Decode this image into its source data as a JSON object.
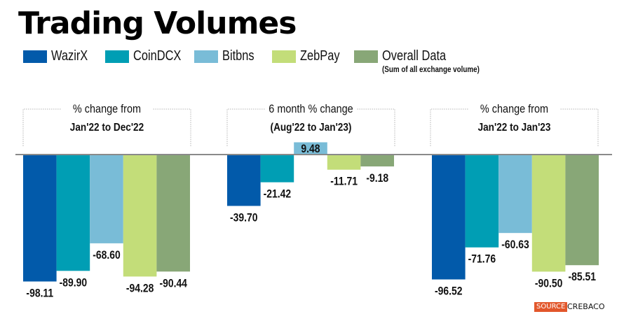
{
  "title": "Trading Volumes",
  "legend": [
    {
      "label": "WazirX",
      "color": "#025aaa"
    },
    {
      "label": "CoinDCX",
      "color": "#009eb4"
    },
    {
      "label": "Bitbns",
      "color": "#79bcd7"
    },
    {
      "label": "ZebPay",
      "color": "#c3dd79"
    },
    {
      "label": "Overall Data",
      "sublabel": "(Sum of all exchange volume)",
      "color": "#88a777"
    }
  ],
  "source": {
    "badge": "SOURCE",
    "text": "CREBACO"
  },
  "chart_data": {
    "type": "bar",
    "title": "Trading Volumes",
    "xlabel": "",
    "ylabel": "% change",
    "ylim": [
      -100,
      10
    ],
    "grid": false,
    "legend_position": "top-left",
    "series_names": [
      "WazirX",
      "CoinDCX",
      "Bitbns",
      "ZebPay",
      "Overall Data"
    ],
    "groups": [
      {
        "heading_line1": "% change from",
        "heading_line2": "Jan'22 to Dec'22",
        "values": [
          -98.11,
          -89.9,
          -68.6,
          -94.28,
          -90.44
        ],
        "labels": [
          "-98.11",
          "-89.90",
          "-68.60",
          "-94.28",
          "-90.44"
        ]
      },
      {
        "heading_line1": "6 month % change",
        "heading_line2": "(Aug'22 to Jan'23)",
        "values": [
          -39.7,
          -21.42,
          9.48,
          -11.71,
          -9.18
        ],
        "labels": [
          "-39.70",
          "-21.42",
          "9.48",
          "-11.71",
          "-9.18"
        ]
      },
      {
        "heading_line1": "% change from",
        "heading_line2": "Jan'22 to Jan'23",
        "values": [
          -96.52,
          -71.76,
          -60.63,
          -90.5,
          -85.51
        ],
        "labels": [
          "-96.52",
          "-71.76",
          "-60.63",
          "-90.50",
          "-85.51"
        ]
      }
    ]
  }
}
